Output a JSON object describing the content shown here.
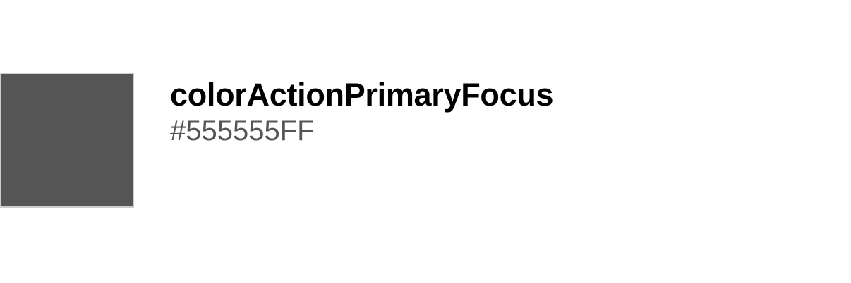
{
  "token": {
    "name": "colorActionPrimaryFocus",
    "value": "#555555FF",
    "swatch_color": "#555555",
    "swatch_border_color": "#cccccc"
  }
}
